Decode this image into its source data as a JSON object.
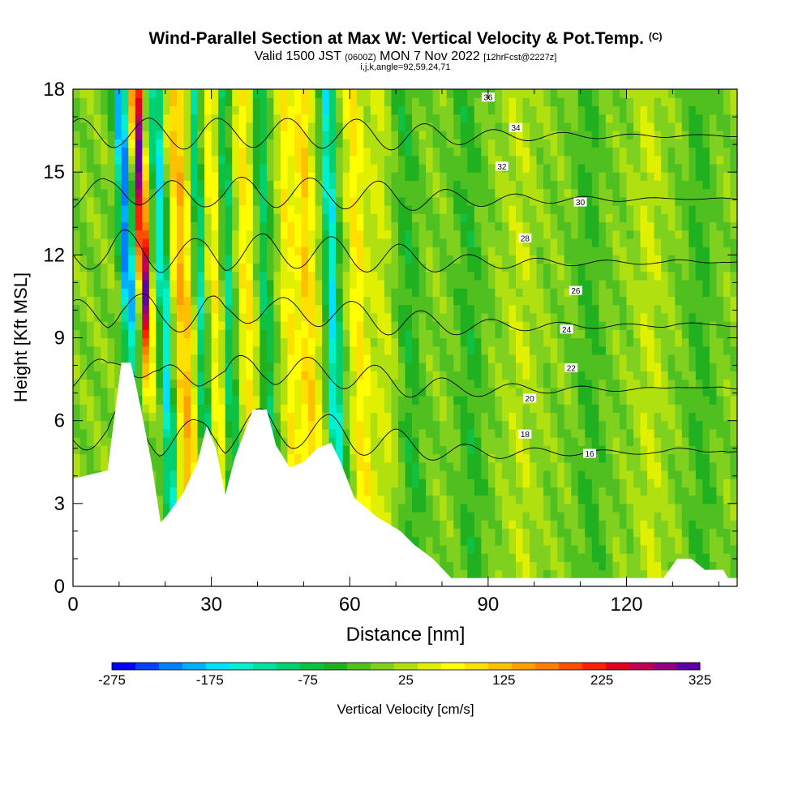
{
  "header": {
    "title": "Wind-Parallel Section at Max W: Vertical Velocity & Pot.Temp.",
    "title_mark": "(C)",
    "valid_a": "Valid 1500 JST",
    "valid_b": "(0600Z)",
    "valid_c": "MON 7 Nov 2022",
    "valid_d": "[12hrFcst@2227z]",
    "indices": "i,j,k,angle=92,59,24,71"
  },
  "chart_data": {
    "type": "heatmap",
    "xlabel": "Distance [nm]",
    "ylabel": "Height [Kft MSL]",
    "xlim": [
      0,
      144
    ],
    "ylim": [
      0,
      18
    ],
    "x_ticks": [
      0,
      30,
      60,
      90,
      120
    ],
    "y_ticks": [
      0,
      3,
      6,
      9,
      12,
      15,
      18
    ],
    "colorbar": {
      "label": "Vertical Velocity [cm/s]",
      "range": [
        -275,
        325
      ],
      "tick_values": [
        -275,
        -175,
        -75,
        25,
        125,
        225,
        325
      ],
      "colors": [
        "#0000ff",
        "#0040ff",
        "#0080ff",
        "#00b0ff",
        "#00e0ff",
        "#00f0d0",
        "#00e0a0",
        "#00d070",
        "#10c040",
        "#20b020",
        "#50c020",
        "#80d020",
        "#b0e010",
        "#e0f000",
        "#ffff00",
        "#ffe000",
        "#ffc000",
        "#ffa000",
        "#ff8000",
        "#ff5000",
        "#ff2000",
        "#e00020",
        "#c00050",
        "#900080",
        "#6000a0"
      ]
    },
    "theta_contours": [
      {
        "label": "16",
        "value": 16,
        "label_x": 112,
        "label_y": 4.8
      },
      {
        "label": "18",
        "value": 18,
        "label_x": 98,
        "label_y": 5.5
      },
      {
        "label": "20",
        "value": 20,
        "label_x": 99,
        "label_y": 6.8
      },
      {
        "label": "22",
        "value": 22,
        "label_x": 108,
        "label_y": 7.9
      },
      {
        "label": "24",
        "value": 24,
        "label_x": 107,
        "label_y": 9.3
      },
      {
        "label": "26",
        "value": 26,
        "label_x": 109,
        "label_y": 10.7
      },
      {
        "label": "28",
        "value": 28,
        "label_x": 98,
        "label_y": 12.6
      },
      {
        "label": "30",
        "value": 30,
        "label_x": 110,
        "label_y": 13.9
      },
      {
        "label": "32",
        "value": 32,
        "label_x": 93,
        "label_y": 15.2
      },
      {
        "label": "34",
        "value": 34,
        "label_x": 96,
        "label_y": 16.6
      },
      {
        "label": "36",
        "value": 36,
        "label_x": 90,
        "label_y": 17.7
      }
    ],
    "terrain_profile": [
      {
        "x": 0,
        "h": 3.9
      },
      {
        "x": 7.5,
        "h": 4.2
      },
      {
        "x": 10.5,
        "h": 8.1
      },
      {
        "x": 12.5,
        "h": 8.1
      },
      {
        "x": 13.5,
        "h": 7.4
      },
      {
        "x": 15,
        "h": 6.2
      },
      {
        "x": 17,
        "h": 4.5
      },
      {
        "x": 19,
        "h": 2.3
      },
      {
        "x": 21,
        "h": 2.7
      },
      {
        "x": 24,
        "h": 3.4
      },
      {
        "x": 27,
        "h": 4.5
      },
      {
        "x": 29,
        "h": 5.8
      },
      {
        "x": 31,
        "h": 5.0
      },
      {
        "x": 33,
        "h": 3.3
      },
      {
        "x": 35,
        "h": 4.6
      },
      {
        "x": 37,
        "h": 5.5
      },
      {
        "x": 39,
        "h": 6.4
      },
      {
        "x": 42,
        "h": 6.4
      },
      {
        "x": 44,
        "h": 5.1
      },
      {
        "x": 47,
        "h": 4.3
      },
      {
        "x": 50,
        "h": 4.5
      },
      {
        "x": 53,
        "h": 5.0
      },
      {
        "x": 56,
        "h": 5.2
      },
      {
        "x": 58,
        "h": 4.5
      },
      {
        "x": 61,
        "h": 3.2
      },
      {
        "x": 66,
        "h": 2.5
      },
      {
        "x": 71,
        "h": 2.0
      },
      {
        "x": 74,
        "h": 1.5
      },
      {
        "x": 78,
        "h": 1.0
      },
      {
        "x": 82,
        "h": 0.3
      },
      {
        "x": 128,
        "h": 0.3
      },
      {
        "x": 131,
        "h": 1.0
      },
      {
        "x": 134,
        "h": 1.0
      },
      {
        "x": 137,
        "h": 0.6
      },
      {
        "x": 141,
        "h": 0.6
      },
      {
        "x": 142,
        "h": 0.3
      },
      {
        "x": 144,
        "h": 0.3
      }
    ]
  }
}
